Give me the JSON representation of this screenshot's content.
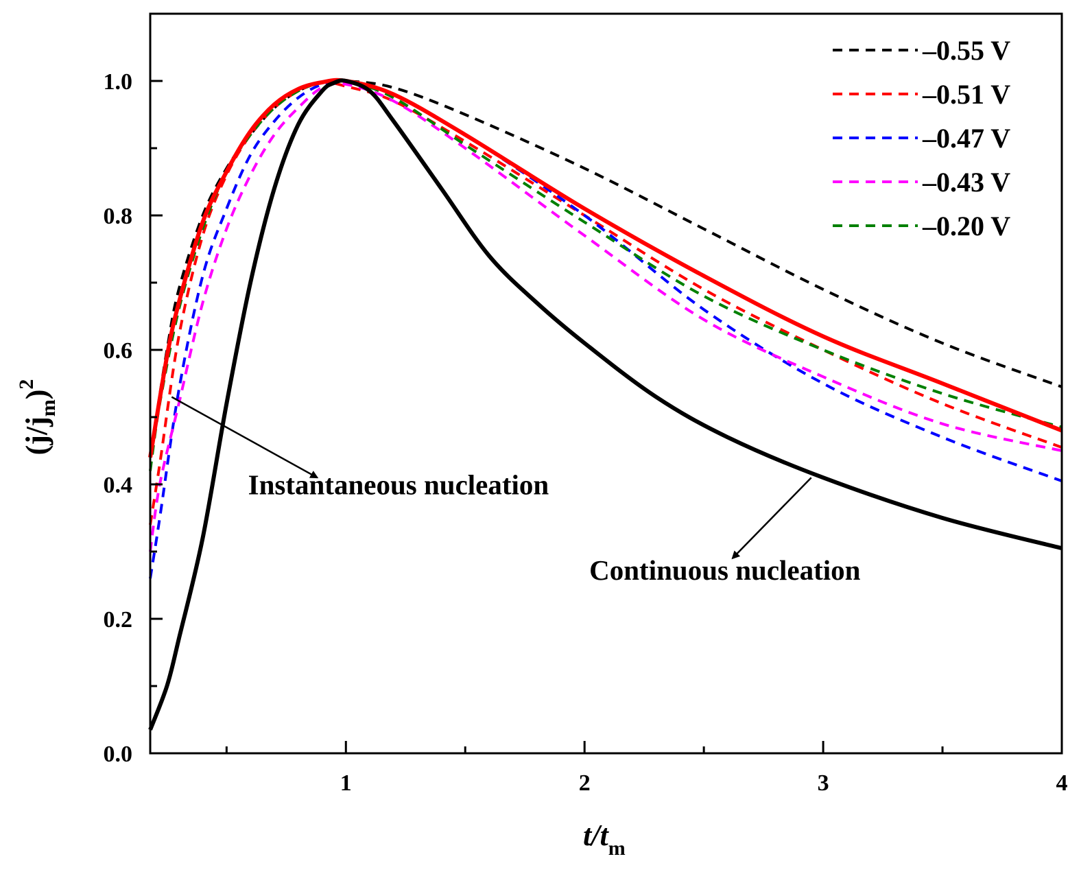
{
  "chart_data": {
    "type": "line",
    "title": "",
    "xlabel": "t/t",
    "xlabel_sub": "m",
    "ylabel": "(j/j",
    "ylabel_sub": "m",
    "ylabel_close": ")",
    "ylabel_sup": "2",
    "xlim": [
      0.18,
      4.0
    ],
    "ylim": [
      0.0,
      1.1
    ],
    "x_major_ticks": [
      1,
      2,
      3,
      4
    ],
    "x_minor_ticks": [
      0.5,
      1.5,
      2.5,
      3.5
    ],
    "y_major_ticks": [
      0.0,
      0.2,
      0.4,
      0.6,
      0.8,
      1.0
    ],
    "y_minor_ticks": [
      0.1,
      0.3,
      0.5,
      0.7,
      0.9
    ],
    "x_tick_labels": [
      "1",
      "2",
      "3",
      "4"
    ],
    "y_tick_labels": [
      "0.0",
      "0.2",
      "0.4",
      "0.6",
      "0.8",
      "1.0"
    ],
    "grid": false,
    "legend_position": "top-right",
    "series": [
      {
        "name": "–0.55 V",
        "color": "#000000",
        "style": "dashed",
        "x": [
          0.18,
          0.25,
          0.3,
          0.4,
          0.5,
          0.6,
          0.7,
          0.8,
          0.9,
          1.0,
          1.2,
          1.5,
          2.0,
          2.5,
          3.0,
          3.5,
          4.0
        ],
        "y": [
          0.44,
          0.6,
          0.69,
          0.8,
          0.87,
          0.92,
          0.96,
          0.985,
          0.998,
          1.0,
          0.99,
          0.95,
          0.87,
          0.78,
          0.69,
          0.61,
          0.545
        ]
      },
      {
        "name": "–0.51 V",
        "color": "#ff0000",
        "style": "dashed",
        "x": [
          0.18,
          0.22,
          0.3,
          0.4,
          0.5,
          0.6,
          0.7,
          0.8,
          0.9,
          1.0,
          1.2,
          1.5,
          2.0,
          2.5,
          3.0,
          3.5,
          4.0
        ],
        "y": [
          0.34,
          0.43,
          0.62,
          0.77,
          0.86,
          0.92,
          0.96,
          0.985,
          0.998,
          0.992,
          0.97,
          0.91,
          0.8,
          0.69,
          0.6,
          0.52,
          0.455
        ]
      },
      {
        "name": "–0.47 V",
        "color": "#0000ff",
        "style": "dashed",
        "x": [
          0.18,
          0.22,
          0.3,
          0.4,
          0.5,
          0.6,
          0.7,
          0.8,
          0.9,
          1.0,
          1.2,
          1.5,
          2.0,
          2.5,
          3.0,
          3.5,
          4.0
        ],
        "y": [
          0.26,
          0.35,
          0.54,
          0.71,
          0.81,
          0.89,
          0.94,
          0.975,
          0.995,
          1.0,
          0.98,
          0.92,
          0.8,
          0.66,
          0.55,
          0.47,
          0.405
        ]
      },
      {
        "name": "–0.43 V",
        "color": "#ff00ff",
        "style": "dashed",
        "x": [
          0.18,
          0.22,
          0.3,
          0.4,
          0.5,
          0.6,
          0.7,
          0.8,
          0.9,
          1.0,
          1.2,
          1.5,
          2.0,
          2.5,
          3.0,
          3.5,
          4.0
        ],
        "y": [
          0.3,
          0.4,
          0.52,
          0.67,
          0.78,
          0.86,
          0.92,
          0.96,
          0.99,
          0.995,
          0.97,
          0.9,
          0.77,
          0.645,
          0.56,
          0.49,
          0.45
        ]
      },
      {
        "name": "–0.20 V",
        "color": "#008000",
        "style": "dashed",
        "x": [
          0.18,
          0.22,
          0.3,
          0.4,
          0.5,
          0.6,
          0.7,
          0.8,
          0.9,
          1.0,
          1.2,
          1.5,
          2.0,
          2.5,
          3.0,
          3.5,
          4.0
        ],
        "y": [
          0.42,
          0.52,
          0.66,
          0.78,
          0.865,
          0.92,
          0.96,
          0.985,
          0.998,
          1.0,
          0.975,
          0.905,
          0.79,
          0.68,
          0.6,
          0.535,
          0.485
        ]
      },
      {
        "name": "Instantaneous nucleation",
        "color": "#ff0000",
        "style": "solid",
        "width": 6,
        "in_legend": false,
        "x": [
          0.18,
          0.25,
          0.3,
          0.4,
          0.5,
          0.6,
          0.7,
          0.8,
          0.9,
          1.0,
          1.2,
          1.5,
          2.0,
          2.5,
          3.0,
          3.5,
          4.0
        ],
        "y": [
          0.44,
          0.59,
          0.67,
          0.79,
          0.865,
          0.925,
          0.965,
          0.988,
          0.998,
          1.0,
          0.98,
          0.92,
          0.81,
          0.71,
          0.62,
          0.55,
          0.48
        ]
      },
      {
        "name": "Continuous nucleation",
        "color": "#000000",
        "style": "solid",
        "width": 6,
        "in_legend": false,
        "x": [
          0.18,
          0.25,
          0.3,
          0.4,
          0.5,
          0.6,
          0.7,
          0.8,
          0.9,
          0.95,
          1.0,
          1.1,
          1.2,
          1.4,
          1.6,
          1.8,
          2.0,
          2.3,
          2.6,
          3.0,
          3.5,
          4.0
        ],
        "y": [
          0.035,
          0.1,
          0.17,
          0.32,
          0.52,
          0.7,
          0.84,
          0.935,
          0.985,
          0.997,
          1.0,
          0.985,
          0.94,
          0.84,
          0.74,
          0.67,
          0.61,
          0.53,
          0.47,
          0.41,
          0.35,
          0.305
        ]
      }
    ],
    "annotations": [
      {
        "text": "Instantaneous nucleation",
        "label_x": 0.59,
        "label_y": 0.385,
        "arrow_from": [
          0.27,
          0.53
        ],
        "arrow_to": [
          0.88,
          0.41
        ]
      },
      {
        "text": "Continuous nucleation",
        "label_x": 2.02,
        "label_y": 0.258,
        "arrow_from": [
          2.95,
          0.41
        ],
        "arrow_to": [
          2.62,
          0.29
        ]
      }
    ]
  }
}
